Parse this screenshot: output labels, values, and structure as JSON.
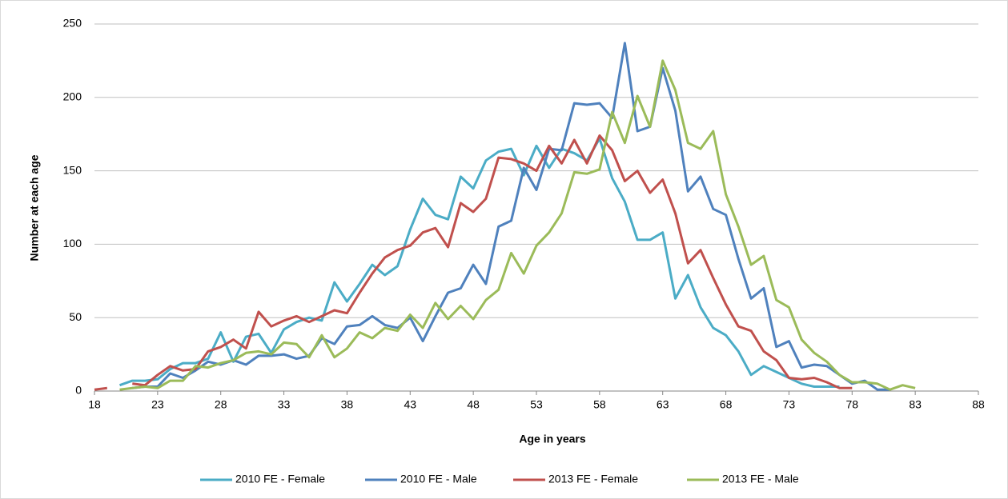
{
  "chart_data": {
    "type": "line",
    "xlabel": "Age in years",
    "ylabel": "Number at each age",
    "x": [
      18,
      19,
      20,
      21,
      22,
      23,
      24,
      25,
      26,
      27,
      28,
      29,
      30,
      31,
      32,
      33,
      34,
      35,
      36,
      37,
      38,
      39,
      40,
      41,
      42,
      43,
      44,
      45,
      46,
      47,
      48,
      49,
      50,
      51,
      52,
      53,
      54,
      55,
      56,
      57,
      58,
      59,
      60,
      61,
      62,
      63,
      64,
      65,
      66,
      67,
      68,
      69,
      70,
      71,
      72,
      73,
      74,
      75,
      76,
      77,
      78,
      79,
      80,
      81,
      82,
      83,
      84,
      85,
      86,
      87,
      88
    ],
    "xlim": [
      18,
      88
    ],
    "xticks": [
      18,
      23,
      28,
      33,
      38,
      43,
      48,
      53,
      58,
      63,
      68,
      73,
      78,
      83,
      88
    ],
    "ylim": [
      0,
      250
    ],
    "yticks": [
      0,
      50,
      100,
      150,
      200,
      250
    ],
    "grid": true,
    "legend": "bottom",
    "series": [
      {
        "name": "2010 FE - Female",
        "color": "#4bacc6",
        "values": [
          null,
          null,
          4,
          7,
          7,
          8,
          15,
          19,
          19,
          22,
          40,
          20,
          37,
          39,
          26,
          42,
          47,
          50,
          48,
          74,
          61,
          73,
          86,
          79,
          85,
          110,
          131,
          120,
          117,
          146,
          138,
          157,
          163,
          165,
          147,
          167,
          152,
          165,
          162,
          157,
          172,
          145,
          129,
          103,
          103,
          108,
          63,
          79,
          57,
          43,
          38,
          27,
          11,
          17,
          13,
          9,
          5,
          3,
          3,
          3,
          null,
          null,
          null,
          null,
          null,
          null,
          null,
          null,
          null,
          null,
          null
        ]
      },
      {
        "name": "2010 FE - Male",
        "color": "#4f81bd",
        "values": [
          null,
          null,
          null,
          2,
          3,
          3,
          12,
          9,
          14,
          20,
          18,
          21,
          18,
          24,
          24,
          25,
          22,
          24,
          36,
          32,
          44,
          45,
          51,
          45,
          43,
          50,
          34,
          51,
          67,
          70,
          86,
          73,
          112,
          116,
          152,
          137,
          165,
          164,
          196,
          195,
          196,
          186,
          237,
          177,
          180,
          220,
          191,
          136,
          146,
          124,
          120,
          90,
          63,
          70,
          30,
          34,
          16,
          18,
          17,
          11,
          5,
          7,
          1,
          1,
          null,
          null,
          null,
          null,
          null,
          null,
          null
        ]
      },
      {
        "name": "2013 FE - Female",
        "color": "#c0504d",
        "values": [
          1,
          2,
          null,
          5,
          4,
          11,
          17,
          14,
          15,
          27,
          30,
          35,
          29,
          54,
          44,
          48,
          51,
          47,
          51,
          55,
          53,
          67,
          80,
          91,
          96,
          99,
          108,
          111,
          98,
          128,
          122,
          131,
          159,
          158,
          155,
          150,
          167,
          155,
          171,
          155,
          174,
          164,
          143,
          150,
          135,
          144,
          121,
          87,
          96,
          77,
          59,
          44,
          41,
          27,
          21,
          9,
          8,
          9,
          6,
          2,
          2,
          null,
          null,
          null,
          null,
          null,
          null,
          null,
          null,
          null,
          null
        ]
      },
      {
        "name": "2013 FE - Male",
        "color": "#9bbb59",
        "values": [
          null,
          null,
          1,
          2,
          3,
          2,
          7,
          7,
          17,
          16,
          19,
          21,
          26,
          27,
          25,
          33,
          32,
          23,
          38,
          23,
          29,
          40,
          36,
          43,
          41,
          52,
          43,
          60,
          49,
          58,
          49,
          62,
          69,
          94,
          80,
          99,
          108,
          121,
          149,
          148,
          151,
          190,
          169,
          201,
          180,
          225,
          205,
          169,
          165,
          177,
          134,
          112,
          86,
          92,
          62,
          57,
          35,
          26,
          20,
          11,
          6,
          6,
          5,
          1,
          4,
          2,
          null,
          null,
          null,
          null,
          null
        ]
      }
    ]
  }
}
